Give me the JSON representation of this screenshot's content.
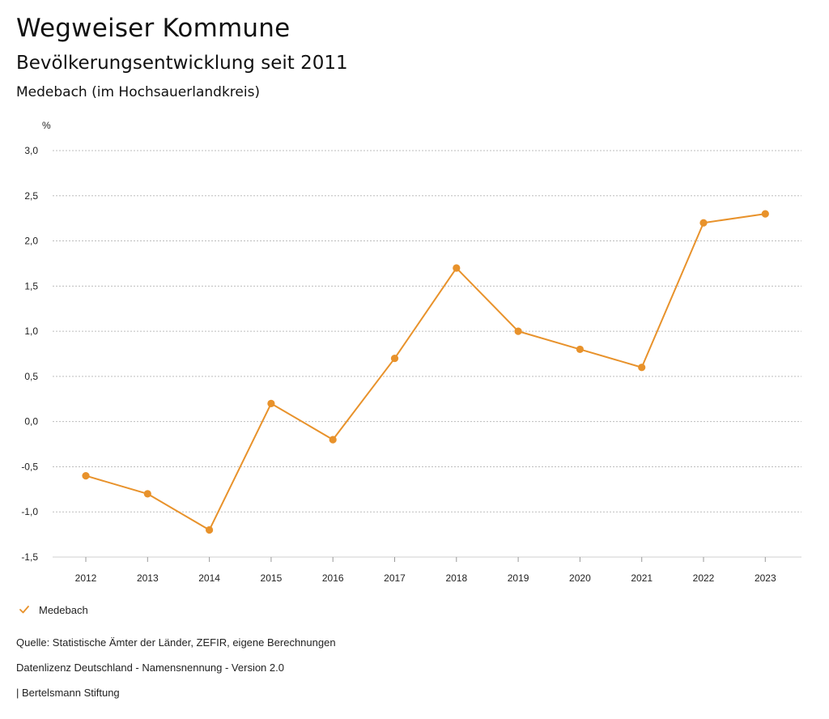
{
  "header": {
    "title": "Wegweiser Kommune",
    "subtitle": "Bevölkerungsentwicklung seit 2011",
    "region": "Medebach (im Hochsauerlandkreis)"
  },
  "chart_data": {
    "type": "line",
    "title": "Bevölkerungsentwicklung seit 2011",
    "xlabel": "",
    "ylabel": "%",
    "ylim": [
      -1.5,
      3.0
    ],
    "yticks": [
      "3,0",
      "2,5",
      "2,0",
      "1,5",
      "1,0",
      "0,5",
      "0,0",
      "-0,5",
      "-1,0",
      "-1,5"
    ],
    "ytick_values": [
      3.0,
      2.5,
      2.0,
      1.5,
      1.0,
      0.5,
      0.0,
      -0.5,
      -1.0,
      -1.5
    ],
    "categories": [
      "2012",
      "2013",
      "2014",
      "2015",
      "2016",
      "2017",
      "2018",
      "2019",
      "2020",
      "2021",
      "2022",
      "2023"
    ],
    "series": [
      {
        "name": "Medebach",
        "color": "#e8922b",
        "values": [
          -0.6,
          -0.8,
          -1.2,
          0.2,
          -0.2,
          0.7,
          1.7,
          1.0,
          0.8,
          0.6,
          2.2,
          2.3
        ]
      }
    ],
    "grid": true,
    "legend_position": "bottom-left"
  },
  "legend": {
    "label": "Medebach",
    "icon": "check-icon"
  },
  "footer": {
    "source": "Quelle: Statistische Ämter der Länder, ZEFIR, eigene Berechnungen",
    "license": "Datenlizenz Deutschland - Namensnennung - Version 2.0",
    "publisher": "| Bertelsmann Stiftung"
  }
}
